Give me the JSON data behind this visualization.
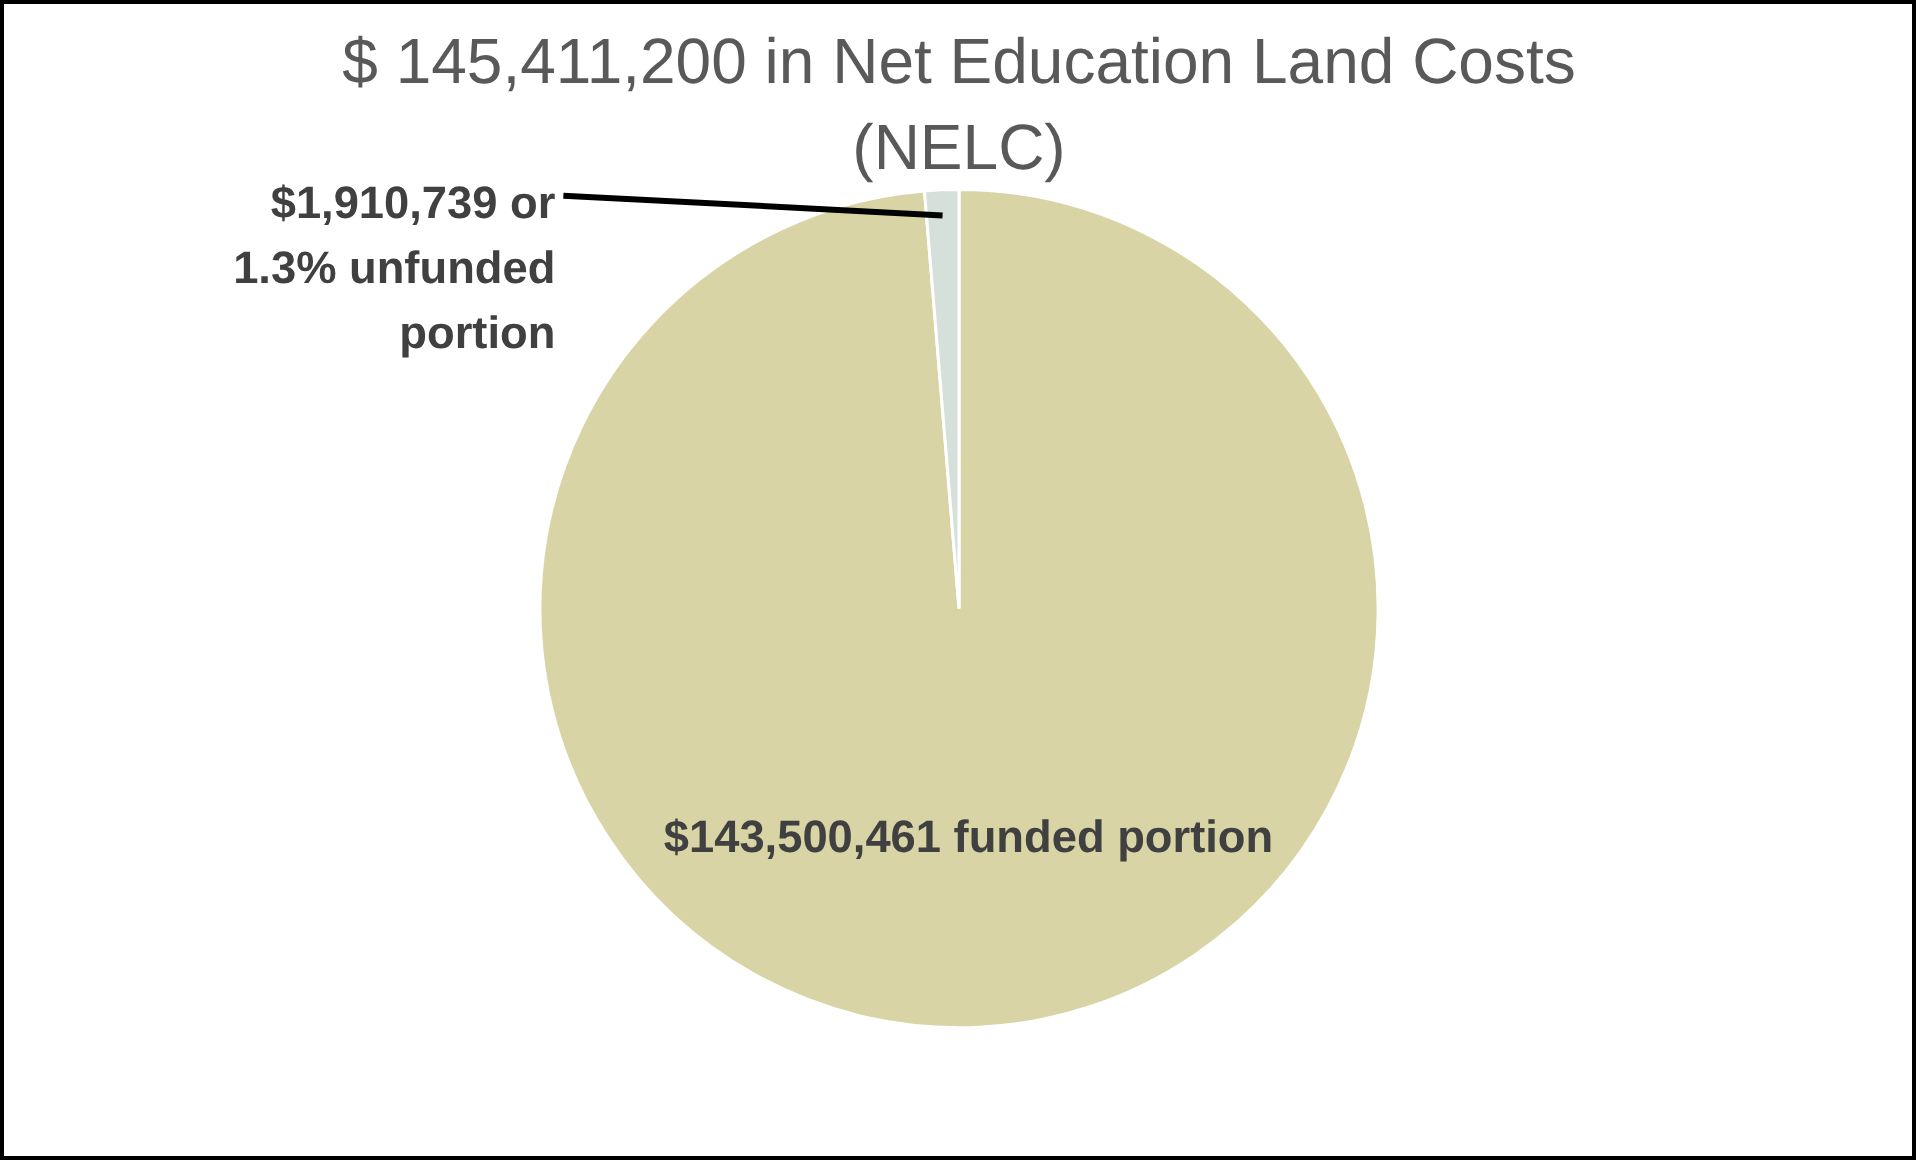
{
  "chart_data": {
    "type": "pie",
    "title": "$ 145,411,200 in Net Education Land Costs (NELC)",
    "categories": [
      null,
      null
    ],
    "values": [
      143500461,
      1910739
    ],
    "colors": [
      "#d8d4a6",
      "#d6e0da"
    ],
    "value_labels": [
      "$143,500,461 funded portion",
      "$1,910,739 or 1.3% unfunded portion"
    ]
  }
}
